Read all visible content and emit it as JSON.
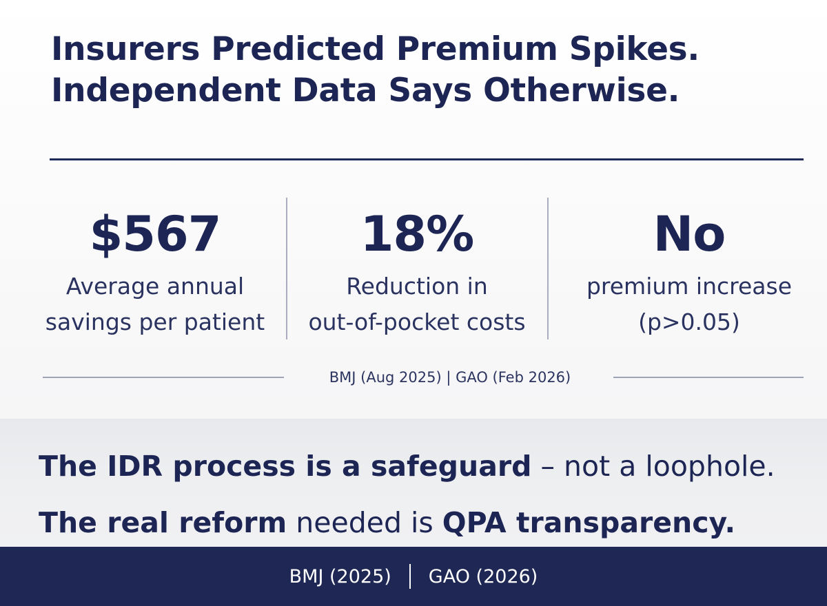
{
  "headline": {
    "line1": "Insurers Predicted Premium Spikes.",
    "line2": "Independent Data Says Otherwise."
  },
  "stats": [
    {
      "value": "$567",
      "label_line1": "Average annual",
      "label_line2": "savings per patient"
    },
    {
      "value": "18%",
      "label_line1": "Reduction in",
      "label_line2": "out-of-pocket costs"
    },
    {
      "value": "No",
      "label_line1": "premium increase",
      "label_line2": "(p>0.05)"
    }
  ],
  "sources": "BMJ (Aug 2025) | GAO (Feb 2026)",
  "message": {
    "line1_bold": "The IDR process is a safeguard",
    "line1_rest": " – not a loophole.",
    "line2_bold1": "The real reform",
    "line2_mid": " needed is ",
    "line2_bold2": "QPA transparency."
  },
  "footer": {
    "left": "BMJ (2025)",
    "right": "GAO (2026)"
  },
  "colors": {
    "navy": "#1c2553",
    "footer_bg": "#1f2854",
    "band_bg": "#eeeff1"
  }
}
